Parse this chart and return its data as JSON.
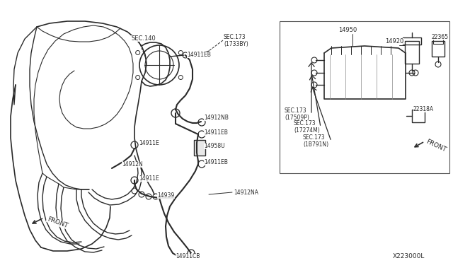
{
  "bg_color": "#ffffff",
  "line_color": "#2a2a2a",
  "fig_width": 6.4,
  "fig_height": 3.72,
  "dpi": 100,
  "diagram_code": "X223000L",
  "parts": {
    "SEC140": "SEC.140",
    "SEC173_1733BY": "SEC.173\n(1733BY)",
    "p14911E_a": "14911E",
    "p14912N": "14912N",
    "p14911E_b": "14911E",
    "p14939": "14939",
    "p14911CB_bot": "14911CB",
    "p14911EB_top": "14911EB",
    "p14912NB": "14912NB",
    "p14911EB_mid": "14911EB",
    "p14958U": "14958U",
    "p14911EB_low": "14911EB",
    "p14912NA": "14912NA",
    "p14950": "14950",
    "p14920": "14920",
    "p22365": "22365",
    "p22318A": "22318A",
    "sec173_17509P": "SEC.173\n(17509P)",
    "sec173_17274M": "SEC.173\n(17274M)",
    "sec173_1B791N": "SEC.173\n(1B791N)",
    "front_left": "FRONT",
    "front_right": "FRONT"
  }
}
